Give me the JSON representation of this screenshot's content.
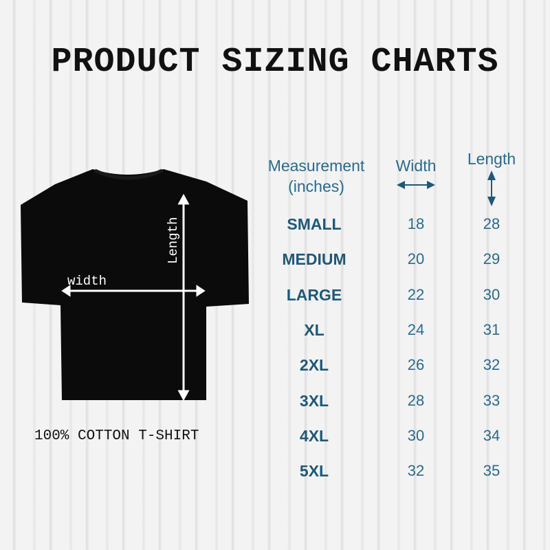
{
  "title": "PRODUCT SIZING CHARTS",
  "diagram": {
    "width_label": "width",
    "length_label": "Length",
    "caption": "100% COTTON T-SHIRT",
    "shirt_color": "#0b0b0b"
  },
  "table": {
    "headers": {
      "measurement": "Measurement",
      "unit": "(inches)",
      "width": "Width",
      "length": "Length"
    },
    "icons": {
      "width": "double-arrow-horizontal-icon",
      "length": "double-arrow-vertical-icon"
    },
    "rows": [
      {
        "size": "SMALL",
        "width": "18",
        "length": "28"
      },
      {
        "size": "MEDIUM",
        "width": "20",
        "length": "29"
      },
      {
        "size": "LARGE",
        "width": "22",
        "length": "30"
      },
      {
        "size": "XL",
        "width": "24",
        "length": "31"
      },
      {
        "size": "2XL",
        "width": "26",
        "length": "32"
      },
      {
        "size": "3XL",
        "width": "28",
        "length": "33"
      },
      {
        "size": "4XL",
        "width": "30",
        "length": "34"
      },
      {
        "size": "5XL",
        "width": "32",
        "length": "35"
      }
    ],
    "text_color": "#2a6a8c"
  }
}
